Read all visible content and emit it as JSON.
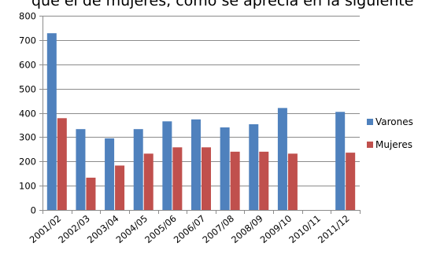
{
  "clipped_text": "que el de mujeres, como se aprecia en la siguiente",
  "chart_data": {
    "type": "bar",
    "categories": [
      "2001/02",
      "2002/03",
      "2003/04",
      "2004/05",
      "2005/06",
      "2006/07",
      "2007/08",
      "2008/09",
      "2009/10",
      "2010/11",
      "2011/12"
    ],
    "series": [
      {
        "name": "Varones",
        "color": "#4f81bd",
        "values": [
          728,
          333,
          295,
          333,
          365,
          373,
          340,
          353,
          420,
          0,
          404
        ]
      },
      {
        "name": "Mujeres",
        "color": "#c0504d",
        "values": [
          378,
          133,
          183,
          232,
          258,
          258,
          240,
          240,
          232,
          0,
          236
        ]
      }
    ],
    "title": "",
    "xlabel": "",
    "ylabel": "",
    "ylim": [
      0,
      800
    ],
    "yticks": [
      0,
      100,
      200,
      300,
      400,
      500,
      600,
      700,
      800
    ],
    "grid": true,
    "legend": "right"
  }
}
